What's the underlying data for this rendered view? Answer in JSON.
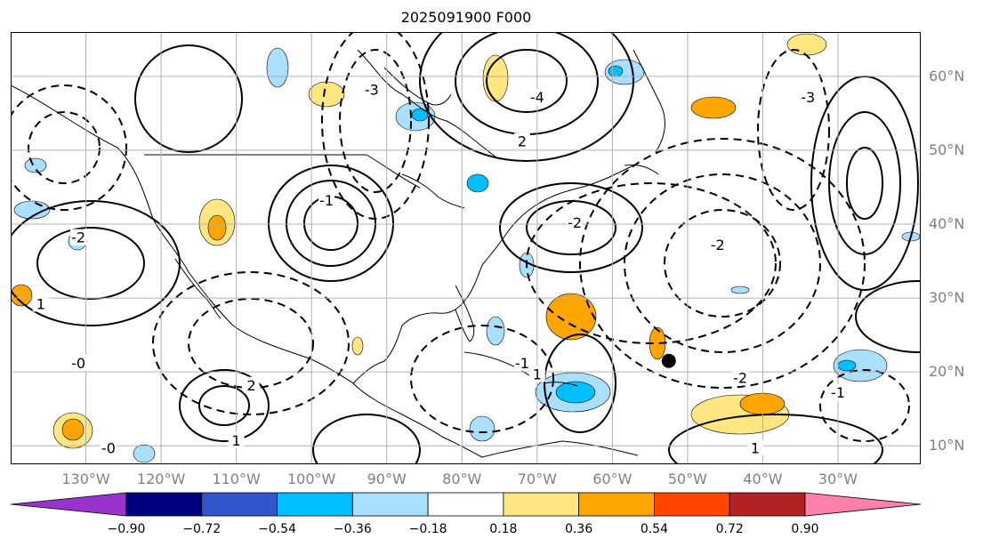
{
  "title": "2025091900 F000",
  "map": {
    "projection": "cylindrical",
    "lon_range": [
      -140,
      -19
    ],
    "lat_range": [
      7.5,
      66
    ],
    "lat_ticks": [
      {
        "value": 60,
        "label": "60°N"
      },
      {
        "value": 50,
        "label": "50°N"
      },
      {
        "value": 40,
        "label": "40°N"
      },
      {
        "value": 30,
        "label": "30°N"
      },
      {
        "value": 20,
        "label": "20°N"
      },
      {
        "value": 10,
        "label": "10°N"
      }
    ],
    "lon_ticks": [
      {
        "value": -130,
        "label": "130°W"
      },
      {
        "value": -120,
        "label": "120°W"
      },
      {
        "value": -110,
        "label": "110°W"
      },
      {
        "value": -100,
        "label": "100°W"
      },
      {
        "value": -90,
        "label": "90°W"
      },
      {
        "value": -80,
        "label": "80°W"
      },
      {
        "value": -70,
        "label": "70°W"
      },
      {
        "value": -60,
        "label": "60°W"
      },
      {
        "value": -50,
        "label": "50°W"
      },
      {
        "value": -40,
        "label": "40°W"
      },
      {
        "value": -30,
        "label": "30°W"
      }
    ],
    "gridlines": true,
    "storm_marker": {
      "lon": -52.5,
      "lat": 21.5
    },
    "contour_labels": [
      {
        "text": "-2",
        "lon": -131,
        "lat": 38
      },
      {
        "text": "1",
        "lon": -136,
        "lat": 29
      },
      {
        "text": "-1",
        "lon": -72,
        "lat": 21
      },
      {
        "text": "1",
        "lon": -70,
        "lat": 19.5
      },
      {
        "text": "-2",
        "lon": -65,
        "lat": 40
      },
      {
        "text": "-2",
        "lon": -43,
        "lat": 19
      },
      {
        "text": "1",
        "lon": -41,
        "lat": 9.5
      },
      {
        "text": "-1",
        "lon": -30,
        "lat": 17
      },
      {
        "text": "-1",
        "lon": -98,
        "lat": 43
      },
      {
        "text": "1",
        "lon": -110,
        "lat": 10.5
      },
      {
        "text": "-0",
        "lon": -127,
        "lat": 9.5
      },
      {
        "text": "-3",
        "lon": -92,
        "lat": 58
      },
      {
        "text": "2",
        "lon": -72,
        "lat": 51
      },
      {
        "text": "-4",
        "lon": -70,
        "lat": 57
      },
      {
        "text": "-3",
        "lon": -34,
        "lat": 57
      },
      {
        "text": "-2",
        "lon": -46,
        "lat": 37
      },
      {
        "text": "2",
        "lon": -108,
        "lat": 18
      },
      {
        "text": "-0",
        "lon": -131,
        "lat": 21
      }
    ],
    "colors": {
      "land_line": "#000000",
      "grid": "#b0b0b0",
      "label": "#808080"
    }
  },
  "colorbar": {
    "extend": "both",
    "under_color": "#9933cc",
    "over_color": "#ff80aa",
    "bins": [
      {
        "color": "#000080"
      },
      {
        "color": "#3355cc"
      },
      {
        "color": "#00bfff"
      },
      {
        "color": "#aadfff"
      },
      {
        "color": "#ffffff"
      },
      {
        "color": "#ffe680"
      },
      {
        "color": "#ffa500"
      },
      {
        "color": "#ff4500"
      },
      {
        "color": "#b22222"
      }
    ],
    "tick_labels": [
      "−0.90",
      "−0.72",
      "−0.54",
      "−0.36",
      "−0.18",
      "0.18",
      "0.36",
      "0.54",
      "0.72",
      "0.90"
    ]
  }
}
